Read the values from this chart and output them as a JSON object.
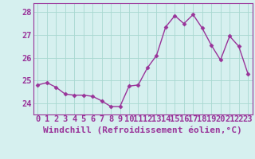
{
  "x": [
    0,
    1,
    2,
    3,
    4,
    5,
    6,
    7,
    8,
    9,
    10,
    11,
    12,
    13,
    14,
    15,
    16,
    17,
    18,
    19,
    20,
    21,
    22,
    23
  ],
  "y": [
    24.8,
    24.9,
    24.7,
    24.4,
    24.35,
    24.35,
    24.3,
    24.1,
    23.85,
    23.85,
    24.75,
    24.8,
    25.55,
    26.1,
    27.35,
    27.85,
    27.5,
    27.9,
    27.3,
    26.55,
    25.9,
    26.95,
    26.5,
    25.3
  ],
  "line_color": "#993399",
  "marker": "D",
  "marker_size": 2.5,
  "bg_color": "#d6f0ef",
  "grid_color": "#a8d8d0",
  "xlabel": "Windchill (Refroidissement éolien,°C)",
  "ylim": [
    23.5,
    28.4
  ],
  "yticks": [
    24,
    25,
    26,
    27,
    28
  ],
  "xticks": [
    0,
    1,
    2,
    3,
    4,
    5,
    6,
    7,
    8,
    9,
    10,
    11,
    12,
    13,
    14,
    15,
    16,
    17,
    18,
    19,
    20,
    21,
    22,
    23
  ],
  "tick_fontsize": 7.5,
  "xlabel_fontsize": 8,
  "spine_color": "#993399",
  "xlim": [
    -0.5,
    23.5
  ]
}
